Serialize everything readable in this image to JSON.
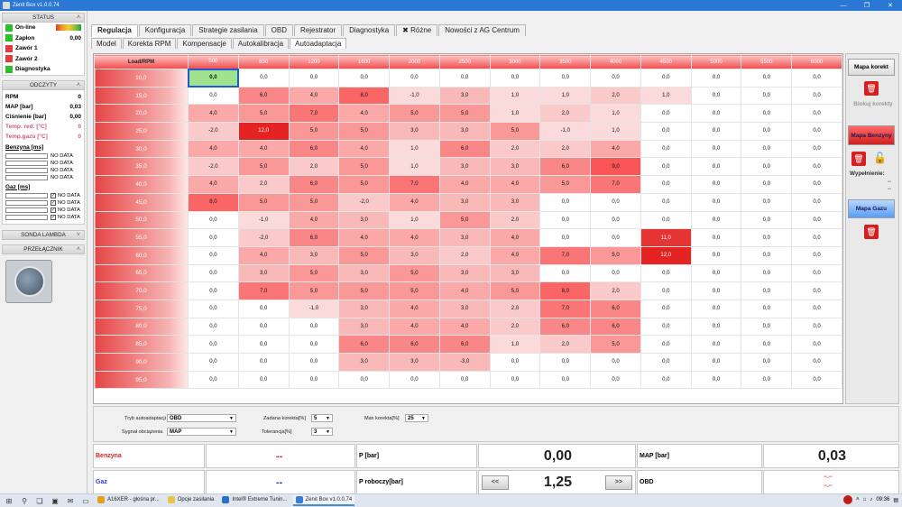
{
  "window": {
    "title": "Zenit Box v1.0.0.74",
    "min": "—",
    "max": "❐",
    "close": "✕"
  },
  "left": {
    "status": {
      "title": "STATUS",
      "items": [
        {
          "label": "On-line",
          "color": "#2bbf2b",
          "value": ""
        },
        {
          "label": "Zapłon",
          "color": "#2bbf2b",
          "value": "0,00"
        },
        {
          "label": "Zawór 1",
          "color": "#e23b3b",
          "value": ""
        },
        {
          "label": "Zawór 2",
          "color": "#e23b3b",
          "value": ""
        },
        {
          "label": "Diagnostyka",
          "color": "#2bbf2b",
          "value": ""
        }
      ]
    },
    "odczyty": {
      "title": "ODCZYTY",
      "items": [
        {
          "label": "RPM",
          "value": "0"
        },
        {
          "label": "MAP [bar]",
          "value": "0,03"
        },
        {
          "label": "Ciśnienie [bar]",
          "value": "0,00"
        },
        {
          "label": "Temp. red. [°C]",
          "value": "0"
        },
        {
          "label": "Temp.gazu [°C]",
          "value": "0"
        }
      ]
    },
    "benzyna": {
      "title": "Benzyna [ms]",
      "unit": "ms",
      "rows": [
        "NO DATA",
        "NO DATA",
        "NO DATA",
        "NO DATA"
      ]
    },
    "gaz": {
      "title": "Gaz [ms]",
      "unit": "ms",
      "rows": [
        "NO DATA",
        "NO DATA",
        "NO DATA",
        "NO DATA"
      ]
    },
    "sonda": {
      "title": "SONDA LAMBDA"
    },
    "przelacznik": {
      "title": "PRZEŁĄCZNIK"
    }
  },
  "tabs": [
    "Regulacja",
    "Konfiguracja",
    "Strategie zasilania",
    "OBD",
    "Rejestrator",
    "Diagnostyka",
    "Różne",
    "Nowości z AG Centrum"
  ],
  "subtabs": [
    "Model",
    "Korekta RPM",
    "Kompensacje",
    "Autokalibracja",
    "Autoadaptacja"
  ],
  "map": {
    "corner": "Load/RPM",
    "rpm": [
      "500",
      "850",
      "1200",
      "1600",
      "2000",
      "2500",
      "3000",
      "3500",
      "4000",
      "4500",
      "5000",
      "5500",
      "6000"
    ],
    "loads": [
      "10,0",
      "15,0",
      "20,0",
      "25,0",
      "30,0",
      "35,0",
      "40,0",
      "45,0",
      "50,0",
      "55,0",
      "60,0",
      "65,0",
      "70,0",
      "75,0",
      "80,0",
      "85,0",
      "90,0",
      "95,0"
    ],
    "values": [
      [
        "0,0",
        "0,0",
        "0,0",
        "0,0",
        "0,0",
        "0,0",
        "0,0",
        "0,0",
        "0,0",
        "0,0",
        "0,0",
        "0,0",
        "0,0"
      ],
      [
        "0,0",
        "6,0",
        "4,0",
        "8,0",
        "-1,0",
        "3,0",
        "1,0",
        "1,0",
        "2,0",
        "1,0",
        "0,0",
        "0,0",
        "0,0"
      ],
      [
        "4,0",
        "5,0",
        "7,0",
        "4,0",
        "5,0",
        "5,0",
        "1,0",
        "2,0",
        "1,0",
        "0,0",
        "0,0",
        "0,0",
        "0,0"
      ],
      [
        "-2,0",
        "12,0",
        "5,0",
        "5,0",
        "3,0",
        "3,0",
        "5,0",
        "-1,0",
        "1,0",
        "0,0",
        "0,0",
        "0,0",
        "0,0"
      ],
      [
        "4,0",
        "4,0",
        "6,0",
        "4,0",
        "1,0",
        "6,0",
        "2,0",
        "2,0",
        "4,0",
        "0,0",
        "0,0",
        "0,0",
        "0,0"
      ],
      [
        "-2,0",
        "5,0",
        "2,0",
        "5,0",
        "1,0",
        "3,0",
        "3,0",
        "6,0",
        "9,0",
        "0,0",
        "0,0",
        "0,0",
        "0,0"
      ],
      [
        "4,0",
        "2,0",
        "6,0",
        "5,0",
        "7,0",
        "4,0",
        "4,0",
        "5,0",
        "7,0",
        "0,0",
        "0,0",
        "0,0",
        "0,0"
      ],
      [
        "8,0",
        "5,0",
        "5,0",
        "-2,0",
        "4,0",
        "3,0",
        "3,0",
        "0,0",
        "0,0",
        "0,0",
        "0,0",
        "0,0",
        "0,0"
      ],
      [
        "0,0",
        "-1,0",
        "4,0",
        "3,0",
        "1,0",
        "5,0",
        "2,0",
        "0,0",
        "0,0",
        "0,0",
        "0,0",
        "0,0",
        "0,0"
      ],
      [
        "0,0",
        "-2,0",
        "6,0",
        "4,0",
        "4,0",
        "3,0",
        "4,0",
        "0,0",
        "0,0",
        "11,0",
        "0,0",
        "0,0",
        "0,0"
      ],
      [
        "0,0",
        "4,0",
        "3,0",
        "5,0",
        "3,0",
        "2,0",
        "4,0",
        "7,0",
        "5,0",
        "12,0",
        "0,0",
        "0,0",
        "0,0"
      ],
      [
        "0,0",
        "3,0",
        "5,0",
        "3,0",
        "5,0",
        "3,0",
        "3,0",
        "0,0",
        "0,0",
        "0,0",
        "0,0",
        "0,0",
        "0,0"
      ],
      [
        "0,0",
        "7,0",
        "5,0",
        "5,0",
        "5,0",
        "4,0",
        "5,0",
        "8,0",
        "2,0",
        "0,0",
        "0,0",
        "0,0",
        "0,0"
      ],
      [
        "0,0",
        "0,0",
        "-1,0",
        "3,0",
        "4,0",
        "3,0",
        "2,0",
        "7,0",
        "6,0",
        "0,0",
        "0,0",
        "0,0",
        "0,0"
      ],
      [
        "0,0",
        "0,0",
        "0,0",
        "3,0",
        "4,0",
        "4,0",
        "2,0",
        "6,0",
        "6,0",
        "0,0",
        "0,0",
        "0,0",
        "0,0"
      ],
      [
        "0,0",
        "0,0",
        "0,0",
        "6,0",
        "6,0",
        "6,0",
        "1,0",
        "2,0",
        "5,0",
        "0,0",
        "0,0",
        "0,0",
        "0,0"
      ],
      [
        "0,0",
        "0,0",
        "0,0",
        "3,0",
        "3,0",
        "-3,0",
        "0,0",
        "0,0",
        "0,0",
        "0,0",
        "0,0",
        "0,0",
        "0,0"
      ],
      [
        "0,0",
        "0,0",
        "0,0",
        "0,0",
        "0,0",
        "0,0",
        "0,0",
        "0,0",
        "0,0",
        "0,0",
        "0,0",
        "0,0",
        "0,0"
      ]
    ],
    "selected_value": "0,0"
  },
  "right": {
    "mapa_korekt": "Mapa korekt",
    "blokuj": "Blokuj korekty",
    "mapa_benzyny": "Mapa Benzyny",
    "wypelnienie": "Wypełnienie:",
    "wyp_val1": "--",
    "wyp_val2": "--",
    "mapa_gazu": "Mapa Gazu"
  },
  "controls": {
    "tryb_label": "Tryb autoadaptacji",
    "tryb_value": "OBD",
    "sygnal_label": "Sygnał obciążenia",
    "sygnal_value": "MAP",
    "zadana_label": "Zadana korekta[%]",
    "zadana_value": "5",
    "tolerancja_label": "Tolerancja[%]",
    "tolerancja_value": "3",
    "max_label": "Max korekta[%]",
    "max_value": "25"
  },
  "bottom": {
    "benzyna_label": "Benzyna",
    "benzyna_value": "--",
    "gaz_label": "Gaz",
    "gaz_value": "--",
    "p_label": "P [bar]",
    "p_value": "0,00",
    "prob_label": "P roboczy[bar]",
    "prob_value": "1,25",
    "prev": "<<",
    "next": ">>",
    "map_label": "MAP [bar]",
    "map_value": "0,03",
    "obd_label": "OBD",
    "obd_value1": "--.--",
    "obd_value2": "--.--"
  },
  "taskbar": {
    "apps": [
      "A16XER - głośna pr...",
      "Opcje zasilania",
      "Intel® Extreme Tunin...",
      "Zenit Box v1.0.0.74"
    ],
    "time": "09:36"
  }
}
